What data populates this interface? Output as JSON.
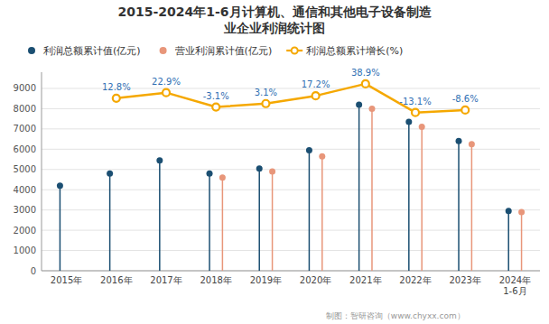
{
  "chart_data": {
    "type": "lollipop",
    "title": "2015-2024年1-6月计算机、通信和其他电子设备制造\n业企业利润统计图",
    "annotations": [
      "制图：智研咨询（www.chyxx.com）"
    ],
    "categories": [
      "2015年",
      "2016年",
      "2017年",
      "2018年",
      "2019年",
      "2020年",
      "2021年",
      "2022年",
      "2023年",
      "2024年\n1-6月"
    ],
    "series": [
      {
        "name": "利润总额累计值(亿元)",
        "type": "lollipop",
        "color": "#1B4F72",
        "values": [
          4200,
          4800,
          5450,
          4800,
          5050,
          5950,
          8200,
          7350,
          6400,
          2950
        ]
      },
      {
        "name": "营业利润累计值(亿元)",
        "type": "lollipop",
        "color": "#E8967A",
        "values": [
          null,
          null,
          null,
          4600,
          4900,
          5650,
          8000,
          7100,
          6250,
          2900
        ]
      },
      {
        "name": "利润总额累计增长(%)",
        "type": "line",
        "axis": "y2",
        "color": "#F5A800",
        "data_labels": true,
        "values": [
          null,
          12.8,
          22.9,
          -3.1,
          3.1,
          17.2,
          38.9,
          -13.1,
          -8.6,
          null
        ],
        "value_labels": [
          null,
          "12.8%",
          "22.9%",
          "-3.1%",
          "3.1%",
          "17.2%",
          "38.9%",
          "-13.1%",
          "-8.6%",
          null
        ]
      }
    ],
    "ylim": [
      0,
      9800
    ],
    "yticks": [
      0,
      1000,
      2000,
      3000,
      4000,
      5000,
      6000,
      7000,
      8000,
      9000
    ],
    "y2lim": [
      -300,
      60
    ],
    "grid": true,
    "legend": "top"
  }
}
